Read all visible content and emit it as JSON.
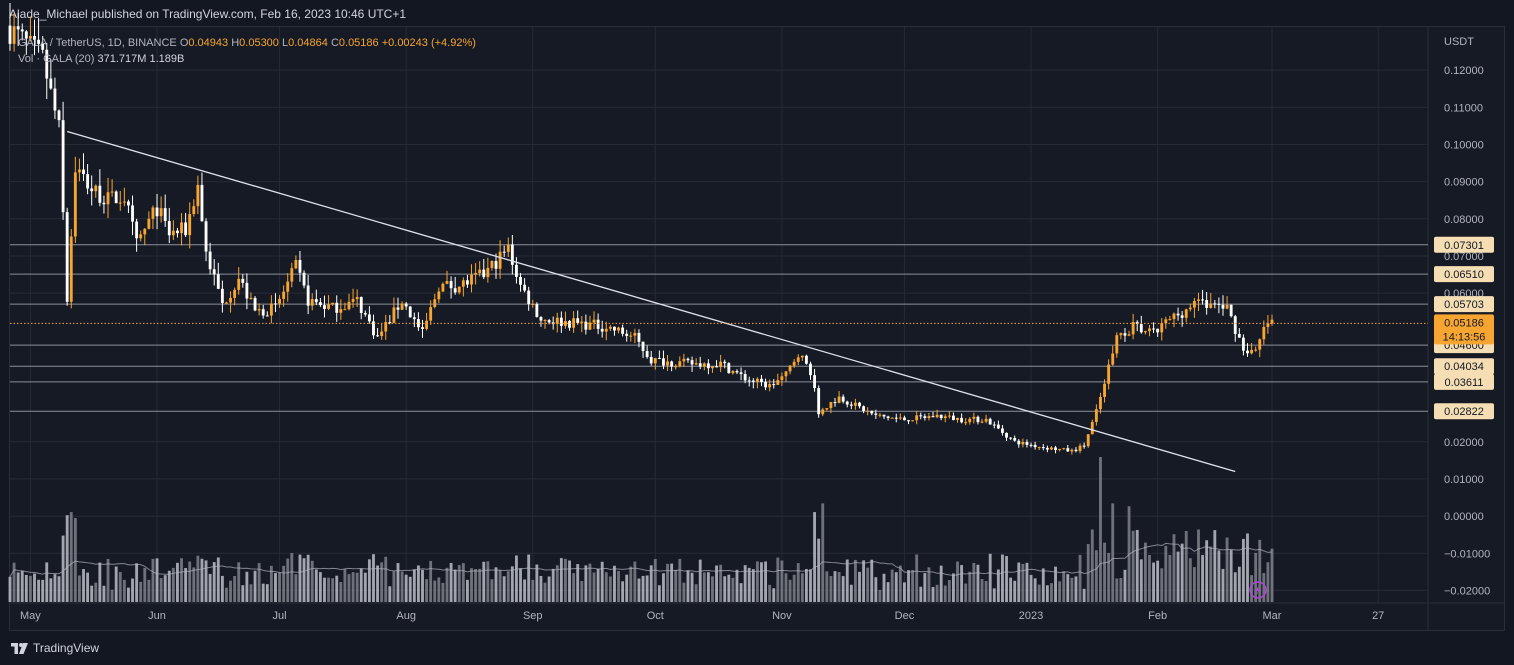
{
  "header": {
    "published": "Alade_Michael published on TradingView.com, Feb 16, 2023 10:46 UTC+1"
  },
  "legend": {
    "symbol": "GALA / TetherUS, 1D, BINANCE",
    "o_label": "O",
    "o": "0.04943",
    "h_label": "H",
    "h": "0.05300",
    "l_label": "L",
    "l": "0.04864",
    "c_label": "C",
    "c": "0.05186",
    "change": "+0.00243 (+4.92%)",
    "vol_label": "Vol · GALA (20)",
    "vol1": "371.717M",
    "vol2": "1.189B"
  },
  "footer": {
    "brand": "TradingView"
  },
  "colors": {
    "up": "#f7a531",
    "down": "#ffffff",
    "bg": "#161a25",
    "grid": "#252a36",
    "line": "#e0e3eb",
    "level": "#8b8f99",
    "last": "#f7a531"
  },
  "chart_data": {
    "type": "candlestick",
    "y_unit": "USDT",
    "ylim": [
      -0.025,
      0.13
    ],
    "y_ticks": [
      "0.12000",
      "0.11000",
      "0.10000",
      "0.09000",
      "0.08000",
      "0.07000",
      "0.06000",
      "0.02000",
      "0.01000",
      "0.00000",
      "−0.01000",
      "−0.02000"
    ],
    "x_ticks": [
      "May",
      "Jun",
      "Jul",
      "Aug",
      "Sep",
      "Oct",
      "Nov",
      "Dec",
      "2023",
      "Feb",
      "Mar",
      "27"
    ],
    "horizontal_levels": [
      {
        "value": 0.07301,
        "label": "0.07301"
      },
      {
        "value": 0.0651,
        "label": "0.06510"
      },
      {
        "value": 0.05703,
        "label": "0.05703"
      },
      {
        "value": 0.046,
        "label": "0.04600"
      },
      {
        "value": 0.04034,
        "label": "0.04034"
      },
      {
        "value": 0.03611,
        "label": "0.03611"
      },
      {
        "value": 0.02822,
        "label": "0.02822"
      }
    ],
    "last_price": {
      "value": 0.05186,
      "label": "0.05186",
      "countdown": "14:13:56"
    },
    "trendline": {
      "from": {
        "date": "2022-05-10",
        "price": 0.1035
      },
      "to": {
        "date": "2023-02-20",
        "price": 0.012
      }
    },
    "x_range": [
      "2022-04-26",
      "2023-03-31"
    ],
    "anchors": [
      [
        "2022-04-26",
        0.132
      ],
      [
        "2022-05-05",
        0.123
      ],
      [
        "2022-05-09",
        0.104
      ],
      [
        "2022-05-11",
        0.058
      ],
      [
        "2022-05-13",
        0.094
      ],
      [
        "2022-05-17",
        0.088
      ],
      [
        "2022-05-21",
        0.085
      ],
      [
        "2022-05-25",
        0.086
      ],
      [
        "2022-05-28",
        0.073
      ],
      [
        "2022-06-02",
        0.083
      ],
      [
        "2022-06-05",
        0.076
      ],
      [
        "2022-06-09",
        0.077
      ],
      [
        "2022-06-12",
        0.089
      ],
      [
        "2022-06-14",
        0.071
      ],
      [
        "2022-06-18",
        0.057
      ],
      [
        "2022-06-22",
        0.064
      ],
      [
        "2022-06-26",
        0.055
      ],
      [
        "2022-07-01",
        0.056
      ],
      [
        "2022-07-06",
        0.067
      ],
      [
        "2022-07-09",
        0.058
      ],
      [
        "2022-07-15",
        0.056
      ],
      [
        "2022-07-21",
        0.058
      ],
      [
        "2022-07-26",
        0.048
      ],
      [
        "2022-08-01",
        0.058
      ],
      [
        "2022-08-06",
        0.049
      ],
      [
        "2022-08-10",
        0.062
      ],
      [
        "2022-08-15",
        0.062
      ],
      [
        "2022-08-21",
        0.065
      ],
      [
        "2022-08-27",
        0.072
      ],
      [
        "2022-08-30",
        0.062
      ],
      [
        "2022-09-04",
        0.053
      ],
      [
        "2022-09-12",
        0.052
      ],
      [
        "2022-09-20",
        0.051
      ],
      [
        "2022-09-27",
        0.048
      ],
      [
        "2022-10-01",
        0.042
      ],
      [
        "2022-10-10",
        0.041
      ],
      [
        "2022-10-18",
        0.041
      ],
      [
        "2022-10-24",
        0.037
      ],
      [
        "2022-10-30",
        0.035
      ],
      [
        "2022-11-03",
        0.038
      ],
      [
        "2022-11-06",
        0.044
      ],
      [
        "2022-11-09",
        0.039
      ],
      [
        "2022-11-11",
        0.028
      ],
      [
        "2022-11-16",
        0.032
      ],
      [
        "2022-11-25",
        0.027
      ],
      [
        "2022-12-02",
        0.026
      ],
      [
        "2022-12-10",
        0.027
      ],
      [
        "2022-12-16",
        0.026
      ],
      [
        "2022-12-22",
        0.026
      ],
      [
        "2022-12-29",
        0.02
      ],
      [
        "2023-01-05",
        0.0185
      ],
      [
        "2023-01-12",
        0.0175
      ],
      [
        "2023-01-15",
        0.019
      ],
      [
        "2023-01-18",
        0.028
      ],
      [
        "2023-01-20",
        0.036
      ],
      [
        "2023-01-23",
        0.048
      ],
      [
        "2023-01-27",
        0.051
      ],
      [
        "2023-02-01",
        0.049
      ],
      [
        "2023-02-05",
        0.053
      ],
      [
        "2023-02-08",
        0.055
      ],
      [
        "2023-02-11",
        0.057
      ],
      [
        "2023-02-15",
        0.057
      ],
      [
        "2023-02-19",
        0.056
      ],
      [
        "2023-02-23",
        0.045
      ],
      [
        "2023-02-26",
        0.044
      ],
      [
        "2023-02-28",
        0.05
      ],
      [
        "2023-03-01",
        0.0519
      ]
    ],
    "volume_spikes": [
      {
        "date": "2022-05-11",
        "level": 0.62
      },
      {
        "date": "2022-11-09",
        "level": 0.62
      },
      {
        "date": "2022-11-11",
        "level": 0.68
      },
      {
        "date": "2023-01-16",
        "level": 0.5
      },
      {
        "date": "2023-01-18",
        "level": 1.0
      },
      {
        "date": "2023-01-21",
        "level": 0.68
      },
      {
        "date": "2023-01-25",
        "level": 0.66
      },
      {
        "date": "2023-02-11",
        "level": 0.5
      }
    ]
  }
}
